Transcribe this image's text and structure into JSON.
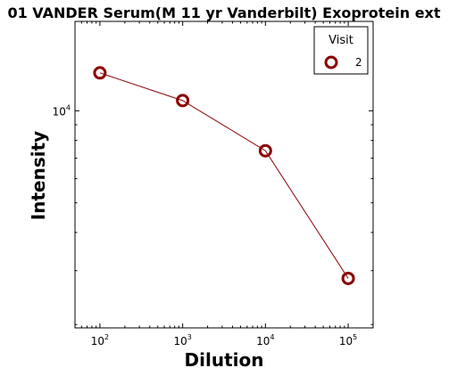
{
  "chart_data": {
    "type": "line",
    "title": "01 VANDER Serum(M 11 yr Vanderbilt) Exoprotein ext",
    "xlabel": "Dilution",
    "ylabel": "Intensity",
    "x_scale": "log",
    "y_scale": "log",
    "xlim": [
      50,
      200000
    ],
    "ylim": [
      1950,
      19600
    ],
    "x_ticks": [
      {
        "value": 100,
        "base": "10",
        "exp": "2"
      },
      {
        "value": 1000,
        "base": "10",
        "exp": "3"
      },
      {
        "value": 10000,
        "base": "10",
        "exp": "4"
      },
      {
        "value": 100000,
        "base": "10",
        "exp": "5"
      }
    ],
    "y_ticks": [
      {
        "value": 10000,
        "base": "10",
        "exp": "4"
      }
    ],
    "legend": {
      "title": "Visit",
      "position": "top-right"
    },
    "series": [
      {
        "name": "2",
        "color": "#8b0000",
        "x": [
          100,
          1000,
          10000,
          100000
        ],
        "y": [
          13300,
          10800,
          7400,
          2830
        ]
      }
    ],
    "grid": false
  }
}
